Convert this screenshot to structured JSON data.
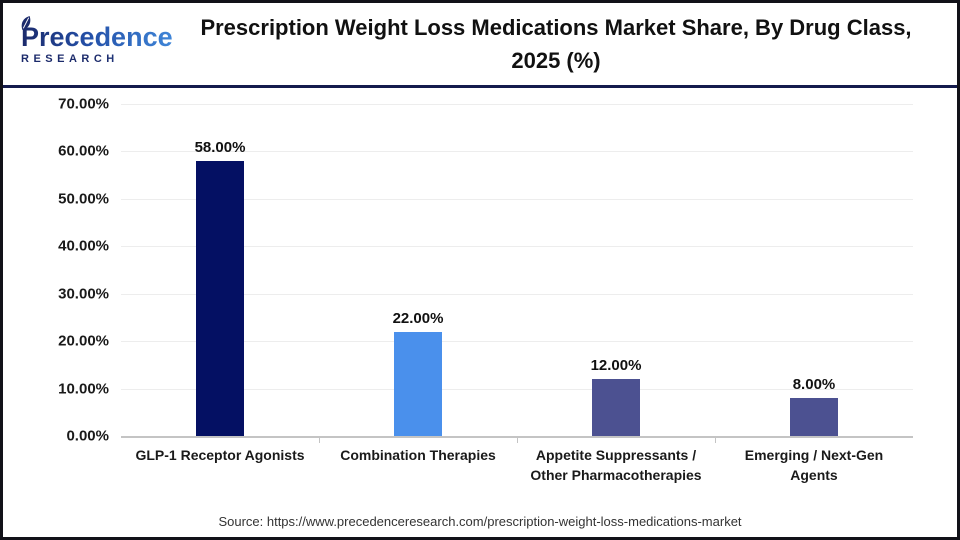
{
  "header": {
    "logo_brand": "Precedence",
    "logo_sub": "RESEARCH",
    "title": "Prescription Weight Loss Medications Market Share, By Drug Class, 2025 (%)"
  },
  "chart_data": {
    "type": "bar",
    "title": "Prescription Weight Loss Medications Market Share, By Drug Class, 2025 (%)",
    "categories": [
      "GLP-1 Receptor Agonists",
      "Combination Therapies",
      "Appetite Suppressants / Other Pharmacotherapies",
      "Emerging / Next-Gen Agents"
    ],
    "values": [
      58,
      22,
      12,
      8
    ],
    "value_labels": [
      "58.00%",
      "22.00%",
      "12.00%",
      "8.00%"
    ],
    "bar_colors": [
      "#041063",
      "#4a90ec",
      "#4c5191",
      "#4c5191"
    ],
    "xlabel": "",
    "ylabel": "",
    "ylim": [
      0,
      70
    ],
    "ytick_labels": [
      "70.00%",
      "60.00%",
      "50.00%",
      "40.00%",
      "30.00%",
      "20.00%",
      "10.00%",
      "0.00%"
    ],
    "grid": true,
    "legend": "none"
  },
  "footer": {
    "source": "Source: https://www.precedenceresearch.com/prescription-weight-loss-medications-market"
  },
  "colors": {
    "header_divider": "#141b4d",
    "outer_border": "#111118",
    "gridline": "#ededed",
    "axis_line": "#c4c4c4"
  }
}
